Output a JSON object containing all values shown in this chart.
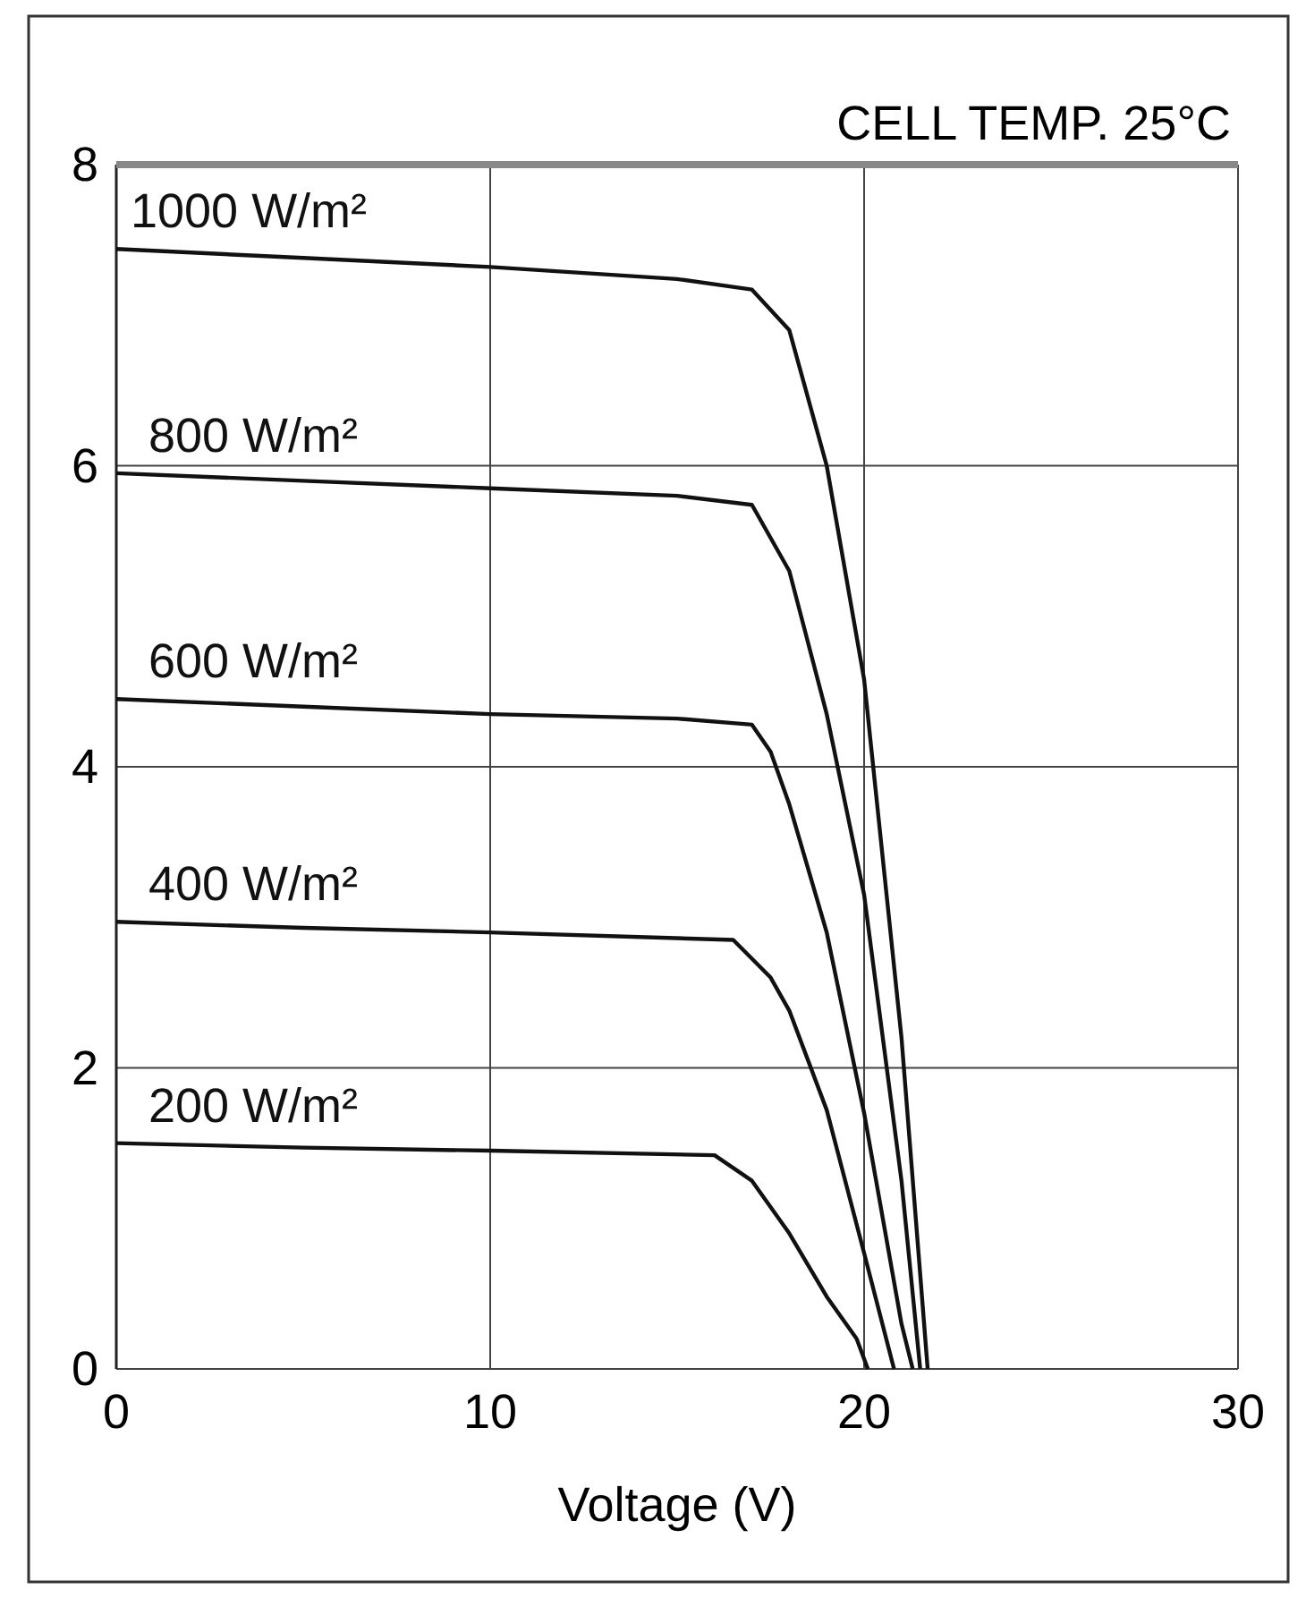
{
  "chart_data": {
    "type": "line",
    "xlabel": "Voltage (V)",
    "annotations": [
      "CELL TEMP. 25°C"
    ],
    "xlim": [
      0,
      30
    ],
    "xticks": [
      0,
      10,
      20,
      30
    ],
    "ylim": [
      0,
      8
    ],
    "yticks": [
      0,
      2,
      4,
      6,
      8
    ],
    "grid": true,
    "legend": false,
    "marker": "none",
    "line_style": "solid",
    "series": [
      {
        "name": "1000 W/m²",
        "color": "#111111",
        "x": [
          0,
          5,
          10,
          15,
          17,
          18,
          19,
          20,
          21,
          21.7
        ],
        "values": [
          7.44,
          7.38,
          7.32,
          7.24,
          7.17,
          6.9,
          6.0,
          4.58,
          2.2,
          0
        ]
      },
      {
        "name": "800 W/m²",
        "color": "#111111",
        "x": [
          0,
          5,
          10,
          15,
          17,
          18,
          19,
          20,
          21,
          21.5
        ],
        "values": [
          5.95,
          5.9,
          5.85,
          5.8,
          5.74,
          5.3,
          4.35,
          3.15,
          1.25,
          0
        ]
      },
      {
        "name": "600 W/m²",
        "color": "#111111",
        "x": [
          0,
          5,
          10,
          15,
          17,
          17.5,
          18,
          19,
          20,
          21,
          21.3
        ],
        "values": [
          4.45,
          4.4,
          4.35,
          4.32,
          4.28,
          4.1,
          3.75,
          2.9,
          1.7,
          0.3,
          0
        ]
      },
      {
        "name": "400 W/m²",
        "color": "#111111",
        "x": [
          0,
          5,
          10,
          16.5,
          17.5,
          18,
          19,
          20,
          20.8
        ],
        "values": [
          2.97,
          2.93,
          2.9,
          2.85,
          2.6,
          2.38,
          1.72,
          0.77,
          0
        ]
      },
      {
        "name": "200 W/m²",
        "color": "#111111",
        "x": [
          0,
          5,
          10,
          16,
          17,
          18,
          19,
          19.8,
          20.1
        ],
        "values": [
          1.5,
          1.47,
          1.45,
          1.42,
          1.25,
          0.9,
          0.48,
          0.2,
          0
        ]
      }
    ]
  }
}
